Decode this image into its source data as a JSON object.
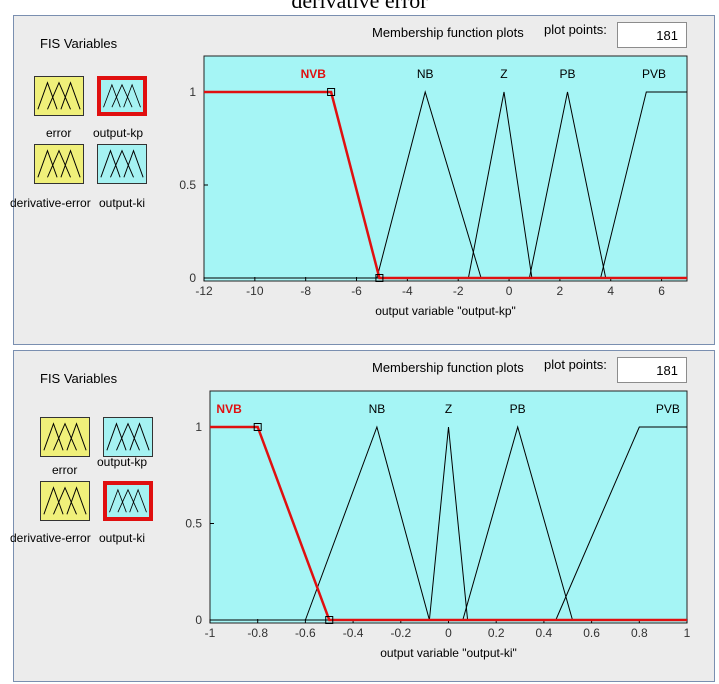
{
  "caption": "derivative error",
  "panels": [
    {
      "fis_title": "FIS Variables",
      "variables": [
        {
          "label": "error",
          "color": "yellow",
          "selected": false
        },
        {
          "label": "output-kp",
          "color": "cyan",
          "selected": true
        },
        {
          "label": "derivative-error",
          "color": "yellow",
          "selected": false
        },
        {
          "label": "output-ki",
          "color": "cyan",
          "selected": false
        }
      ],
      "mf_plot_title": "Membership function plots",
      "plot_points_label": "plot points:",
      "plot_points_value": "181",
      "xlabel": "output variable \"output-kp\"",
      "xlim": [
        -12,
        7
      ],
      "ylim": [
        0,
        1
      ],
      "xticks": [
        "-12",
        "-10",
        "-8",
        "-6",
        "-4",
        "-2",
        "0",
        "2",
        "4",
        "6"
      ],
      "yticks": [
        "0",
        "0.5",
        "1"
      ],
      "mfs": [
        {
          "name": "NVB",
          "selected": true,
          "points": [
            [
              -12,
              1
            ],
            [
              -7,
              1
            ],
            [
              -5.1,
              0
            ],
            [
              7,
              0
            ]
          ]
        },
        {
          "name": "NB",
          "selected": false,
          "points": [
            [
              -5.2,
              0
            ],
            [
              -3.3,
              1
            ],
            [
              -1.1,
              0
            ]
          ]
        },
        {
          "name": "Z",
          "selected": false,
          "points": [
            [
              -1.6,
              0
            ],
            [
              -0.2,
              1
            ],
            [
              0.9,
              0
            ]
          ]
        },
        {
          "name": "PB",
          "selected": false,
          "points": [
            [
              0.8,
              0
            ],
            [
              2.3,
              1
            ],
            [
              3.8,
              0
            ]
          ]
        },
        {
          "name": "PVB",
          "selected": false,
          "points": [
            [
              3.6,
              0
            ],
            [
              5.4,
              1
            ],
            [
              7,
              1
            ]
          ]
        }
      ],
      "mf_label_x": [
        -7.7,
        -3.3,
        -0.2,
        2.3,
        5.7
      ]
    },
    {
      "fis_title": "FIS Variables",
      "variables": [
        {
          "label": "error",
          "color": "yellow",
          "selected": false
        },
        {
          "label": "output-kp",
          "color": "cyan",
          "selected": false
        },
        {
          "label": "derivative-error",
          "color": "yellow",
          "selected": false
        },
        {
          "label": "output-ki",
          "color": "cyan",
          "selected": true
        }
      ],
      "mf_plot_title": "Membership function plots",
      "plot_points_label": "plot points:",
      "plot_points_value": "181",
      "xlabel": "output variable \"output-ki\"",
      "xlim": [
        -1,
        1
      ],
      "ylim": [
        0,
        1
      ],
      "xticks": [
        "-1",
        "-0.8",
        "-0.6",
        "-0.4",
        "-0.2",
        "0",
        "0.2",
        "0.4",
        "0.6",
        "0.8",
        "1"
      ],
      "yticks": [
        "0",
        "0.5",
        "1"
      ],
      "mfs": [
        {
          "name": "NVB",
          "selected": true,
          "points": [
            [
              -1,
              1
            ],
            [
              -0.8,
              1
            ],
            [
              -0.5,
              0
            ],
            [
              1,
              0
            ]
          ]
        },
        {
          "name": "NB",
          "selected": false,
          "points": [
            [
              -0.6,
              0
            ],
            [
              -0.3,
              1
            ],
            [
              -0.08,
              0
            ]
          ]
        },
        {
          "name": "Z",
          "selected": false,
          "points": [
            [
              -0.08,
              0
            ],
            [
              0,
              1
            ],
            [
              0.08,
              0
            ]
          ]
        },
        {
          "name": "PB",
          "selected": false,
          "points": [
            [
              0.06,
              0
            ],
            [
              0.29,
              1
            ],
            [
              0.52,
              0
            ]
          ]
        },
        {
          "name": "PVB",
          "selected": false,
          "points": [
            [
              0.45,
              0
            ],
            [
              0.8,
              1
            ],
            [
              1,
              1
            ]
          ]
        }
      ],
      "mf_label_x": [
        -0.92,
        -0.3,
        0,
        0.29,
        0.92
      ]
    }
  ]
}
